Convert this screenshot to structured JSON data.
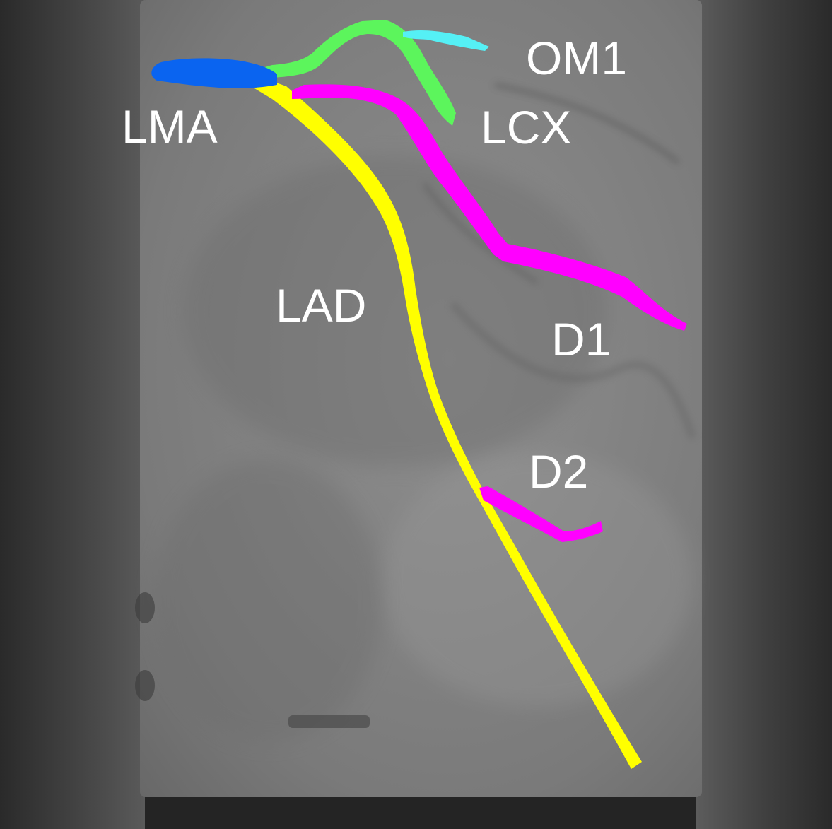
{
  "image": {
    "kind": "coronary angiogram with vessel segmentation overlay",
    "vessels": [
      {
        "id": "lma",
        "label": "LMA",
        "color": "#0a64f0"
      },
      {
        "id": "lad",
        "label": "LAD",
        "color": "#ffff00"
      },
      {
        "id": "lcx",
        "label": "LCX",
        "color": "#5cf55c"
      },
      {
        "id": "om1",
        "label": "OM1",
        "color": "#55f0f5"
      },
      {
        "id": "d1",
        "label": "D1",
        "color": "#ff00ff"
      },
      {
        "id": "d2",
        "label": "D2",
        "color": "#ff00ff"
      }
    ]
  }
}
